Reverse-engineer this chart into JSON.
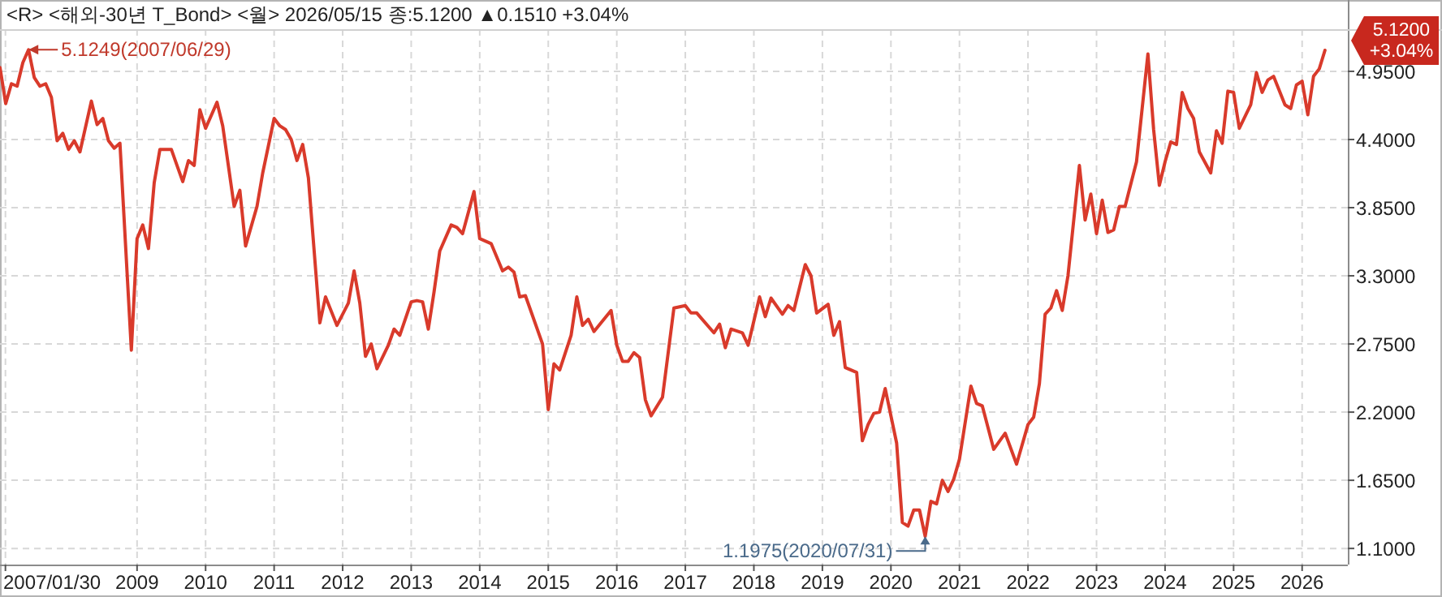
{
  "chart_data": {
    "type": "line",
    "title": "<R> <해외-30년 T_Bond> <월> 2026/05/15 종:5.1200 ▲0.1510 +3.04%",
    "x": [
      "2007-01",
      "2007-02",
      "2007-03",
      "2007-04",
      "2007-05",
      "2007-06",
      "2007-07",
      "2007-08",
      "2007-09",
      "2007-10",
      "2007-11",
      "2007-12",
      "2008-01",
      "2008-02",
      "2008-03",
      "2008-05",
      "2008-06",
      "2008-07",
      "2008-08",
      "2008-09",
      "2008-10",
      "2008-12",
      "2009-01",
      "2009-02",
      "2009-03",
      "2009-04",
      "2009-05",
      "2009-07",
      "2009-08",
      "2009-09",
      "2009-10",
      "2009-11",
      "2009-12",
      "2010-01",
      "2010-03",
      "2010-04",
      "2010-06",
      "2010-07",
      "2010-08",
      "2010-10",
      "2010-11",
      "2011-01",
      "2011-02",
      "2011-03",
      "2011-04",
      "2011-05",
      "2011-06",
      "2011-07",
      "2011-09",
      "2011-10",
      "2011-12",
      "2012-02",
      "2012-03",
      "2012-04",
      "2012-05",
      "2012-06",
      "2012-07",
      "2012-09",
      "2012-10",
      "2012-11",
      "2013-01",
      "2013-02",
      "2013-03",
      "2013-04",
      "2013-05",
      "2013-06",
      "2013-08",
      "2013-09",
      "2013-10",
      "2013-12",
      "2014-01",
      "2014-03",
      "2014-05",
      "2014-06",
      "2014-07",
      "2014-08",
      "2014-09",
      "2014-12",
      "2015-01",
      "2015-02",
      "2015-03",
      "2015-05",
      "2015-06",
      "2015-07",
      "2015-08",
      "2015-09",
      "2015-12",
      "2016-01",
      "2016-02",
      "2016-03",
      "2016-04",
      "2016-05",
      "2016-06",
      "2016-07",
      "2016-09",
      "2016-11",
      "2017-01",
      "2017-02",
      "2017-03",
      "2017-06",
      "2017-07",
      "2017-08",
      "2017-09",
      "2017-11",
      "2017-12",
      "2018-02",
      "2018-03",
      "2018-04",
      "2018-06",
      "2018-07",
      "2018-08",
      "2018-10",
      "2018-11",
      "2018-12",
      "2019-02",
      "2019-03",
      "2019-04",
      "2019-05",
      "2019-07",
      "2019-08",
      "2019-09",
      "2019-10",
      "2019-11",
      "2019-12",
      "2020-02",
      "2020-03",
      "2020-04",
      "2020-05",
      "2020-06",
      "2020-07",
      "2020-08",
      "2020-09",
      "2020-10",
      "2020-11",
      "2020-12",
      "2021-01",
      "2021-03",
      "2021-04",
      "2021-05",
      "2021-07",
      "2021-09",
      "2021-11",
      "2022-01",
      "2022-02",
      "2022-03",
      "2022-04",
      "2022-05",
      "2022-06",
      "2022-07",
      "2022-08",
      "2022-10",
      "2022-11",
      "2022-12",
      "2023-01",
      "2023-02",
      "2023-03",
      "2023-04",
      "2023-05",
      "2023-06",
      "2023-08",
      "2023-10",
      "2023-11",
      "2023-12",
      "2024-01",
      "2024-02",
      "2024-03",
      "2024-04",
      "2024-05",
      "2024-06",
      "2024-07",
      "2024-09",
      "2024-10",
      "2024-11",
      "2024-12",
      "2025-01",
      "2025-02",
      "2025-04",
      "2025-05",
      "2025-06",
      "2025-07",
      "2025-08",
      "2025-10",
      "2025-11",
      "2025-12",
      "2026-01",
      "2026-02",
      "2026-03",
      "2026-04",
      "2026-05"
    ],
    "series": [
      {
        "color": "#d93a2b",
        "values": [
          4.98,
          4.69,
          4.85,
          4.83,
          5.02,
          5.1249,
          4.9,
          4.83,
          4.85,
          4.74,
          4.39,
          4.45,
          4.32,
          4.39,
          4.3,
          4.71,
          4.52,
          4.57,
          4.39,
          4.33,
          4.37,
          2.7,
          3.6,
          3.71,
          3.52,
          4.05,
          4.32,
          4.32,
          4.19,
          4.06,
          4.23,
          4.19,
          4.64,
          4.49,
          4.7,
          4.51,
          3.86,
          3.99,
          3.54,
          3.86,
          4.13,
          4.57,
          4.51,
          4.48,
          4.4,
          4.23,
          4.36,
          4.09,
          2.92,
          3.13,
          2.9,
          3.08,
          3.34,
          3.08,
          2.65,
          2.75,
          2.55,
          2.74,
          2.87,
          2.82,
          3.09,
          3.1,
          3.09,
          2.87,
          3.17,
          3.5,
          3.71,
          3.69,
          3.64,
          3.98,
          3.6,
          3.56,
          3.34,
          3.37,
          3.33,
          3.13,
          3.14,
          2.75,
          2.22,
          2.59,
          2.54,
          2.82,
          3.13,
          2.9,
          2.95,
          2.85,
          3.02,
          2.74,
          2.61,
          2.61,
          2.68,
          2.64,
          2.3,
          2.17,
          2.32,
          3.04,
          3.06,
          3.0,
          3.0,
          2.84,
          2.91,
          2.72,
          2.87,
          2.84,
          2.74,
          3.13,
          2.97,
          3.12,
          2.99,
          3.06,
          3.02,
          3.39,
          3.3,
          3.0,
          3.07,
          2.82,
          2.93,
          2.56,
          2.52,
          1.97,
          2.1,
          2.19,
          2.2,
          2.39,
          1.95,
          1.31,
          1.28,
          1.41,
          1.41,
          1.1975,
          1.48,
          1.46,
          1.65,
          1.56,
          1.66,
          1.82,
          2.41,
          2.27,
          2.25,
          1.9,
          2.03,
          1.78,
          2.1,
          2.16,
          2.43,
          2.99,
          3.04,
          3.18,
          3.02,
          3.3,
          4.19,
          3.75,
          3.96,
          3.64,
          3.91,
          3.65,
          3.67,
          3.86,
          3.86,
          4.22,
          5.09,
          4.48,
          4.03,
          4.22,
          4.38,
          4.36,
          4.78,
          4.65,
          4.57,
          4.3,
          4.13,
          4.47,
          4.37,
          4.79,
          4.78,
          4.49,
          4.68,
          4.94,
          4.78,
          4.88,
          4.91,
          4.68,
          4.65,
          4.84,
          4.87,
          4.6,
          4.91,
          4.97,
          5.12
        ]
      }
    ],
    "xlim": [
      "2007-01",
      "2026-09"
    ],
    "xticks": [
      {
        "value": "2007-01-30",
        "label": "2007/01/30"
      },
      {
        "value": "2009",
        "label": "2009"
      },
      {
        "value": "2010",
        "label": "2010"
      },
      {
        "value": "2011",
        "label": "2011"
      },
      {
        "value": "2012",
        "label": "2012"
      },
      {
        "value": "2013",
        "label": "2013"
      },
      {
        "value": "2014",
        "label": "2014"
      },
      {
        "value": "2015",
        "label": "2015"
      },
      {
        "value": "2016",
        "label": "2016"
      },
      {
        "value": "2017",
        "label": "2017"
      },
      {
        "value": "2018",
        "label": "2018"
      },
      {
        "value": "2019",
        "label": "2019"
      },
      {
        "value": "2020",
        "label": "2020"
      },
      {
        "value": "2021",
        "label": "2021"
      },
      {
        "value": "2022",
        "label": "2022"
      },
      {
        "value": "2023",
        "label": "2023"
      },
      {
        "value": "2024",
        "label": "2024"
      },
      {
        "value": "2025",
        "label": "2025"
      },
      {
        "value": "2026",
        "label": "2026"
      }
    ],
    "ylim": [
      0.97,
      5.29
    ],
    "yticks": [
      {
        "value": 1.1,
        "label": "1.1000"
      },
      {
        "value": 1.65,
        "label": "1.6500"
      },
      {
        "value": 2.2,
        "label": "2.2000"
      },
      {
        "value": 2.75,
        "label": "2.7500"
      },
      {
        "value": 3.3,
        "label": "3.3000"
      },
      {
        "value": 3.85,
        "label": "3.8500"
      },
      {
        "value": 4.4,
        "label": "4.4000"
      },
      {
        "value": 4.95,
        "label": "4.9500"
      }
    ],
    "grid": true,
    "line_style": "solid",
    "marker": "none",
    "annotations": [
      {
        "text": "5.1249(2007/06/29)",
        "x": "2007-06",
        "y": 5.1249
      },
      {
        "text": "1.1975(2020/07/31)",
        "x": "2020-07",
        "y": 1.1975
      },
      "5.1200",
      "+3.04%"
    ]
  }
}
